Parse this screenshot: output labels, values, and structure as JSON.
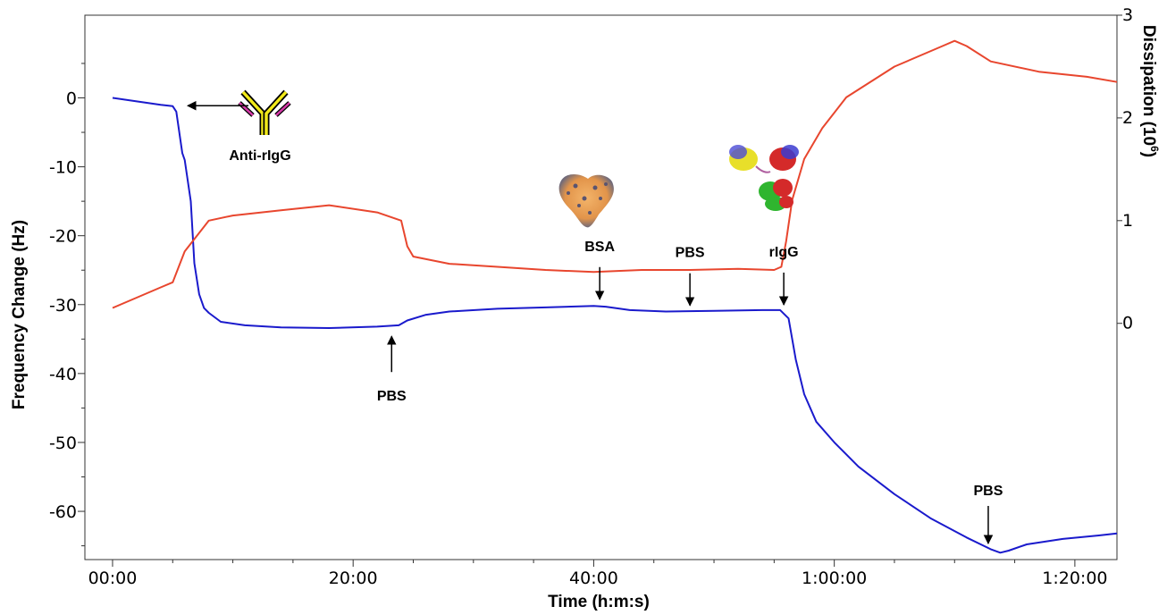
{
  "chart_data": {
    "type": "line",
    "xlabel": "Time (h:m:s)",
    "ylabel": "Frequency Change (Hz)",
    "ylabel_right": "Dissipation (10",
    "ylabel_right_sup": "6",
    "ylabel_right_close": ")",
    "xlim_minutes": [
      -2.3,
      83.5
    ],
    "ylim": [
      -67,
      12
    ],
    "ylim_right": [
      -2.3,
      3
    ],
    "x_ticks": [
      {
        "minutes": 0,
        "label": "00:00"
      },
      {
        "minutes": 20,
        "label": "20:00"
      },
      {
        "minutes": 40,
        "label": "40:00"
      },
      {
        "minutes": 60,
        "label": "1:00:00"
      },
      {
        "minutes": 80,
        "label": "1:20:00"
      }
    ],
    "y_ticks": [
      {
        "value": 0,
        "label": "0"
      },
      {
        "value": -10,
        "label": "-10"
      },
      {
        "value": -20,
        "label": "-20"
      },
      {
        "value": -30,
        "label": "-30"
      },
      {
        "value": -40,
        "label": "-40"
      },
      {
        "value": -50,
        "label": "-50"
      },
      {
        "value": -60,
        "label": "-60"
      }
    ],
    "y_right_ticks": [
      {
        "value": 3,
        "label": "3"
      },
      {
        "value": 2,
        "label": "2"
      },
      {
        "value": 1,
        "label": "1"
      },
      {
        "value": 0,
        "label": "0"
      }
    ],
    "series": [
      {
        "color": "#1a1acc",
        "axis": "left",
        "x_minutes": [
          0,
          2,
          4,
          5,
          5.3,
          5.8,
          6.0,
          6.5,
          6.8,
          7.2,
          7.6,
          8.0,
          9,
          11,
          14,
          18,
          22,
          23.8,
          24.5,
          26,
          28,
          32,
          36,
          40,
          41,
          43,
          46,
          50,
          54,
          55.5,
          56.2,
          56.8,
          57.5,
          58.5,
          60,
          62,
          65,
          68,
          71,
          73,
          73.8,
          74.5,
          76,
          79,
          82,
          83.5
        ],
        "values": [
          0,
          -0.5,
          -1,
          -1.2,
          -2,
          -8,
          -9,
          -15,
          -24,
          -28.5,
          -30.5,
          -31.2,
          -32.5,
          -33,
          -33.3,
          -33.4,
          -33.2,
          -33,
          -32.3,
          -31.5,
          -31,
          -30.6,
          -30.4,
          -30.2,
          -30.3,
          -30.8,
          -31,
          -30.9,
          -30.8,
          -30.8,
          -32,
          -38,
          -43,
          -47,
          -50,
          -53.5,
          -57.5,
          -61,
          -63.8,
          -65.5,
          -66,
          -65.7,
          -64.8,
          -64,
          -63.5,
          -63.2
        ]
      },
      {
        "color": "#e8462e",
        "axis": "right",
        "x_minutes": [
          0,
          2,
          4,
          5,
          5.5,
          6,
          7,
          8,
          10,
          14,
          18,
          22,
          24,
          24.5,
          25,
          28,
          32,
          36,
          40,
          44,
          48,
          52,
          55,
          55.6,
          56,
          56.5,
          57.5,
          59,
          61,
          65,
          69,
          70,
          71,
          73,
          77,
          81,
          83.5
        ],
        "values": [
          0.15,
          0.25,
          0.35,
          0.4,
          0.55,
          0.7,
          0.85,
          1.0,
          1.05,
          1.1,
          1.15,
          1.08,
          1.0,
          0.75,
          0.65,
          0.58,
          0.55,
          0.52,
          0.5,
          0.52,
          0.52,
          0.53,
          0.52,
          0.55,
          0.8,
          1.2,
          1.6,
          1.9,
          2.2,
          2.5,
          2.7,
          2.75,
          2.7,
          2.55,
          2.45,
          2.4,
          2.35
        ]
      }
    ],
    "annotations": [
      {
        "text": "Anti-rIgG",
        "icon": "antibody-icon",
        "x_minutes": 5.8,
        "y": -1
      },
      {
        "text": "PBS",
        "x_minutes": 23.2,
        "y": -33.3,
        "direction": "up"
      },
      {
        "text": "BSA",
        "icon": "bsa-protein-icon",
        "x_minutes": 40.5,
        "y": -30
      },
      {
        "text": "PBS",
        "x_minutes": 48,
        "y": -30.9
      },
      {
        "text": "rIgG",
        "icon": "rigg-protein-icon",
        "x_minutes": 55.8,
        "y": -30.8
      },
      {
        "text": "PBS",
        "x_minutes": 72.8,
        "y": -65.7
      }
    ]
  },
  "colors": {
    "frequency_line": "#1a1acc",
    "dissipation_line": "#e8462e",
    "axis": "#333333",
    "antibody_yellow": "#f2ea1a",
    "antibody_pink": "#d63aa9"
  }
}
